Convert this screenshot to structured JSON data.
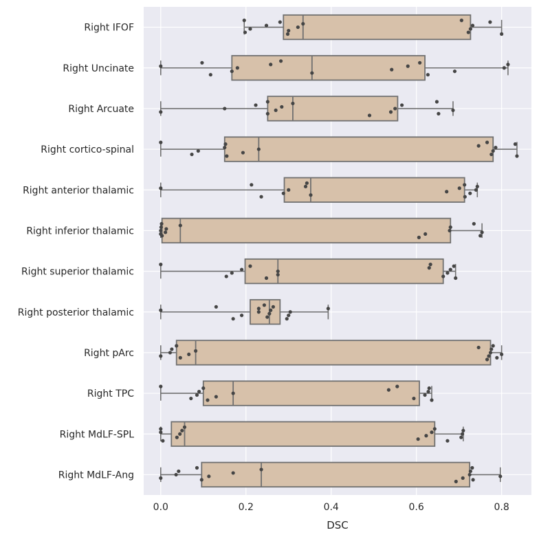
{
  "chart_data": {
    "type": "box",
    "orientation": "horizontal",
    "xlabel": "DSC",
    "ylabel": "",
    "xlim": [
      -0.04,
      0.87
    ],
    "xticks": [
      0.0,
      0.2,
      0.4,
      0.6,
      0.8
    ],
    "xtick_labels": [
      "0.0",
      "0.2",
      "0.4",
      "0.6",
      "0.8"
    ],
    "grid": true,
    "colors": {
      "background": "#eaeaf2",
      "grid": "#ffffff",
      "box_fill": "#d7c1aa",
      "box_edge": "#707070",
      "point": "#454545"
    },
    "categories": [
      "Right IFOF",
      "Right Uncinate",
      "Right Arcuate",
      "Right cortico-spinal",
      "Right anterior thalamic",
      "Right inferior thalamic",
      "Right superior thalamic",
      "Right posterior thalamic",
      "Right pArc",
      "Right TPC",
      "Right MdLF-SPL",
      "Right MdLF-Ang"
    ],
    "boxes": [
      {
        "whisker_low": 0.196,
        "q1": 0.288,
        "median": 0.334,
        "q3": 0.727,
        "whisker_high": 0.8
      },
      {
        "whisker_low": 0.0,
        "q1": 0.167,
        "median": 0.355,
        "q3": 0.62,
        "whisker_high": 0.815
      },
      {
        "whisker_low": 0.0,
        "q1": 0.251,
        "median": 0.31,
        "q3": 0.556,
        "whisker_high": 0.686
      },
      {
        "whisker_low": 0.0,
        "q1": 0.15,
        "median": 0.23,
        "q3": 0.78,
        "whisker_high": 0.836
      },
      {
        "whisker_low": 0.0,
        "q1": 0.29,
        "median": 0.352,
        "q3": 0.713,
        "whisker_high": 0.743
      },
      {
        "whisker_low": 0.0,
        "q1": 0.003,
        "median": 0.046,
        "q3": 0.68,
        "whisker_high": 0.754
      },
      {
        "whisker_low": 0.0,
        "q1": 0.198,
        "median": 0.275,
        "q3": 0.663,
        "whisker_high": 0.692
      },
      {
        "whisker_low": 0.0,
        "q1": 0.21,
        "median": 0.255,
        "q3": 0.28,
        "whisker_high": 0.393
      },
      {
        "whisker_low": 0.0,
        "q1": 0.037,
        "median": 0.082,
        "q3": 0.774,
        "whisker_high": 0.8
      },
      {
        "whisker_low": 0.0,
        "q1": 0.1,
        "median": 0.17,
        "q3": 0.607,
        "whisker_high": 0.636
      },
      {
        "whisker_low": 0.0,
        "q1": 0.025,
        "median": 0.056,
        "q3": 0.643,
        "whisker_high": 0.71
      },
      {
        "whisker_low": 0.0,
        "q1": 0.096,
        "median": 0.236,
        "q3": 0.725,
        "whisker_high": 0.797
      }
    ],
    "points": [
      [
        0.196,
        0.198,
        0.21,
        0.248,
        0.28,
        0.298,
        0.3,
        0.322,
        0.334,
        0.706,
        0.722,
        0.727,
        0.732,
        0.773,
        0.8
      ],
      [
        0.0,
        0.097,
        0.117,
        0.167,
        0.18,
        0.258,
        0.282,
        0.355,
        0.542,
        0.58,
        0.608,
        0.627,
        0.69,
        0.806,
        0.815
      ],
      [
        0.0,
        0.15,
        0.223,
        0.251,
        0.251,
        0.27,
        0.284,
        0.31,
        0.49,
        0.54,
        0.55,
        0.566,
        0.648,
        0.652,
        0.686
      ],
      [
        0.0,
        0.073,
        0.088,
        0.15,
        0.152,
        0.155,
        0.193,
        0.23,
        0.746,
        0.766,
        0.776,
        0.78,
        0.786,
        0.832,
        0.836
      ],
      [
        0.0,
        0.213,
        0.236,
        0.288,
        0.3,
        0.34,
        0.343,
        0.352,
        0.671,
        0.701,
        0.713,
        0.714,
        0.726,
        0.74,
        0.743
      ],
      [
        0.0,
        0.0,
        0.001,
        0.002,
        0.003,
        0.011,
        0.013,
        0.046,
        0.606,
        0.621,
        0.678,
        0.68,
        0.735,
        0.75,
        0.754
      ],
      [
        0.0,
        0.154,
        0.167,
        0.19,
        0.21,
        0.248,
        0.275,
        0.275,
        0.63,
        0.633,
        0.663,
        0.673,
        0.68,
        0.688,
        0.692
      ],
      [
        0.0,
        0.13,
        0.17,
        0.19,
        0.23,
        0.23,
        0.243,
        0.25,
        0.255,
        0.258,
        0.264,
        0.296,
        0.3,
        0.304,
        0.393
      ],
      [
        0.0,
        0.022,
        0.026,
        0.037,
        0.046,
        0.066,
        0.082,
        0.746,
        0.766,
        0.77,
        0.774,
        0.776,
        0.78,
        0.789,
        0.8
      ],
      [
        0.0,
        0.071,
        0.085,
        0.09,
        0.1,
        0.11,
        0.13,
        0.17,
        0.535,
        0.555,
        0.594,
        0.62,
        0.628,
        0.63,
        0.636
      ],
      [
        0.0,
        0.0,
        0.005,
        0.038,
        0.045,
        0.05,
        0.056,
        0.604,
        0.623,
        0.636,
        0.643,
        0.673,
        0.705,
        0.708,
        0.71
      ],
      [
        0.0,
        0.036,
        0.042,
        0.085,
        0.096,
        0.113,
        0.17,
        0.236,
        0.693,
        0.709,
        0.725,
        0.727,
        0.731,
        0.733,
        0.797
      ]
    ]
  }
}
